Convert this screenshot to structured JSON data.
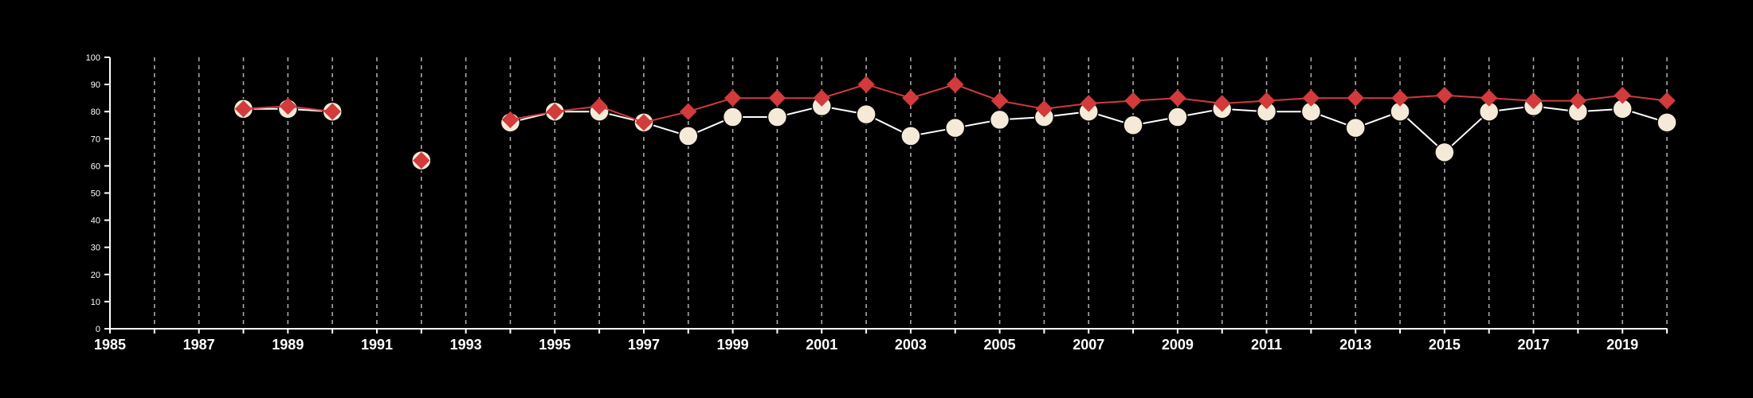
{
  "chart_data": {
    "type": "line",
    "title": "",
    "xlabel": "",
    "ylabel": "",
    "xlim": [
      1985,
      2020
    ],
    "ylim": [
      0,
      100
    ],
    "x_ticks": [
      "1985",
      "1987",
      "1989",
      "1991",
      "1993",
      "1995",
      "1997",
      "1999",
      "2001",
      "2003",
      "2005",
      "2007",
      "2009",
      "2011",
      "2013",
      "2015",
      "2017",
      "2019"
    ],
    "y_ticks": [
      "0",
      "10",
      "20",
      "30",
      "40",
      "50",
      "60",
      "70",
      "80",
      "90",
      "100"
    ],
    "vertical_gridlines": "dashed, every year",
    "legend": "none",
    "colors": {
      "background": "#000000",
      "axis": "#ffffff",
      "grid": "#aaaaaa"
    },
    "series": [
      {
        "marker": "circle",
        "color": "#ffffff",
        "marker_fill": "#f5ead8",
        "points": [
          [
            1988,
            81
          ],
          [
            1989,
            81
          ],
          [
            1990,
            80
          ],
          [
            1992,
            62
          ],
          [
            1994,
            76
          ],
          [
            1995,
            80
          ],
          [
            1996,
            80
          ],
          [
            1997,
            76
          ],
          [
            1998,
            71
          ],
          [
            1999,
            78
          ],
          [
            2000,
            78
          ],
          [
            2001,
            82
          ],
          [
            2002,
            79
          ],
          [
            2003,
            71
          ],
          [
            2004,
            74
          ],
          [
            2005,
            77
          ],
          [
            2006,
            78
          ],
          [
            2007,
            80
          ],
          [
            2008,
            75
          ],
          [
            2009,
            78
          ],
          [
            2010,
            81
          ],
          [
            2011,
            80
          ],
          [
            2012,
            80
          ],
          [
            2013,
            74
          ],
          [
            2014,
            80
          ],
          [
            2015,
            65
          ],
          [
            2016,
            80
          ],
          [
            2017,
            82
          ],
          [
            2018,
            80
          ],
          [
            2019,
            81
          ],
          [
            2020,
            76
          ]
        ]
      },
      {
        "marker": "diamond",
        "color": "#d23a3c",
        "points": [
          [
            1988,
            81
          ],
          [
            1989,
            82
          ],
          [
            1990,
            80
          ],
          [
            1992,
            62
          ],
          [
            1994,
            77
          ],
          [
            1995,
            80
          ],
          [
            1996,
            82
          ],
          [
            1997,
            76
          ],
          [
            1998,
            80
          ],
          [
            1999,
            85
          ],
          [
            2000,
            85
          ],
          [
            2001,
            85
          ],
          [
            2002,
            90
          ],
          [
            2003,
            85
          ],
          [
            2004,
            90
          ],
          [
            2005,
            84
          ],
          [
            2006,
            81
          ],
          [
            2007,
            83
          ],
          [
            2008,
            84
          ],
          [
            2009,
            85
          ],
          [
            2010,
            83
          ],
          [
            2011,
            84
          ],
          [
            2012,
            85
          ],
          [
            2013,
            85
          ],
          [
            2014,
            85
          ],
          [
            2015,
            86
          ],
          [
            2016,
            85
          ],
          [
            2017,
            84
          ],
          [
            2018,
            84
          ],
          [
            2019,
            86
          ],
          [
            2020,
            84
          ]
        ]
      }
    ]
  }
}
